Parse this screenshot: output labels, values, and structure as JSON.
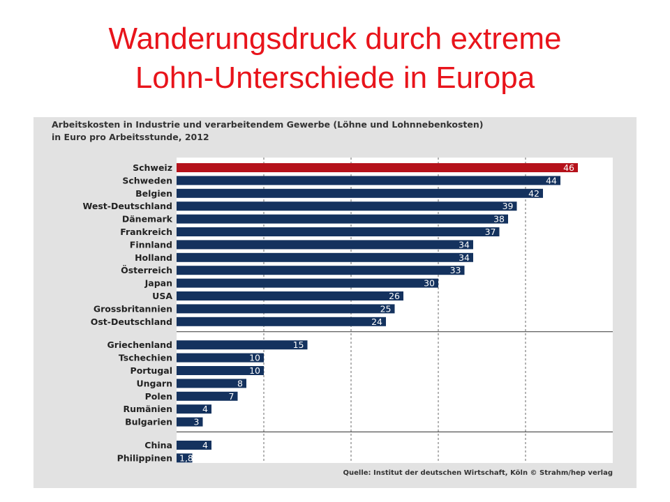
{
  "slide": {
    "title_line1": "Wanderungsdruck durch extreme",
    "title_line2": "Lohn-Unterschiede in Europa"
  },
  "chart_data": {
    "type": "bar",
    "orientation": "horizontal",
    "title_line1": "Arbeitskosten in Industrie und verarbeitendem Gewerbe (Löhne und Lohnnebenkosten)",
    "title_line2": "in Euro pro Arbeitsstunde, 2012",
    "source": "Quelle: Institut der deutschen Wirtschaft, Köln  © Strahm/hep verlag",
    "xlim": [
      0,
      50
    ],
    "grid": "vertical dashed at 10, 20, 30, 40",
    "colors": {
      "highlight": "#b5121b",
      "bar": "#14325e"
    },
    "groups": [
      {
        "categories": [
          "Schweiz",
          "Schweden",
          "Belgien",
          "West-Deutschland",
          "Dänemark",
          "Frankreich",
          "Finnland",
          "Holland",
          "Österreich",
          "Japan",
          "USA",
          "Grossbritannien",
          "Ost-Deutschland"
        ],
        "values": [
          46,
          44,
          42,
          39,
          38,
          37,
          34,
          34,
          33,
          30,
          26,
          25,
          24
        ],
        "labels": [
          "46",
          "44",
          "42",
          "39",
          "38",
          "37",
          "34",
          "34",
          "33",
          "30",
          "26",
          "25",
          "24"
        ]
      },
      {
        "categories": [
          "Griechenland",
          "Tschechien",
          "Portugal",
          "Ungarn",
          "Polen",
          "Rumänien",
          "Bulgarien"
        ],
        "values": [
          15,
          10,
          10,
          8,
          7,
          4,
          3
        ],
        "labels": [
          "15",
          "10",
          "10",
          "8",
          "7",
          "4",
          "3"
        ]
      },
      {
        "categories": [
          "China",
          "Philippinen"
        ],
        "values": [
          4,
          1.8
        ],
        "labels": [
          "4",
          "1,8"
        ]
      }
    ],
    "highlighted_category": "Schweiz"
  }
}
